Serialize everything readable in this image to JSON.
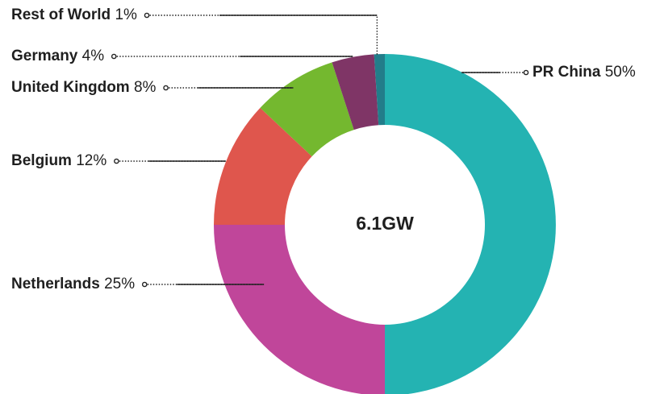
{
  "chart_data": {
    "type": "pie",
    "center_label": "6.1GW",
    "slices": [
      {
        "label": "PR China",
        "value": 50,
        "value_text": "50%",
        "color": "#24b3b2"
      },
      {
        "label": "Netherlands",
        "value": 25,
        "value_text": "25%",
        "color": "#c0469a"
      },
      {
        "label": "Belgium",
        "value": 12,
        "value_text": "12%",
        "color": "#df564d"
      },
      {
        "label": "United Kingdom",
        "value": 8,
        "value_text": "8%",
        "color": "#74b82f"
      },
      {
        "label": "Germany",
        "value": 4,
        "value_text": "4%",
        "color": "#7f3566"
      },
      {
        "label": "Rest of World",
        "value": 1,
        "value_text": "1%",
        "color": "#227d8a"
      }
    ]
  }
}
